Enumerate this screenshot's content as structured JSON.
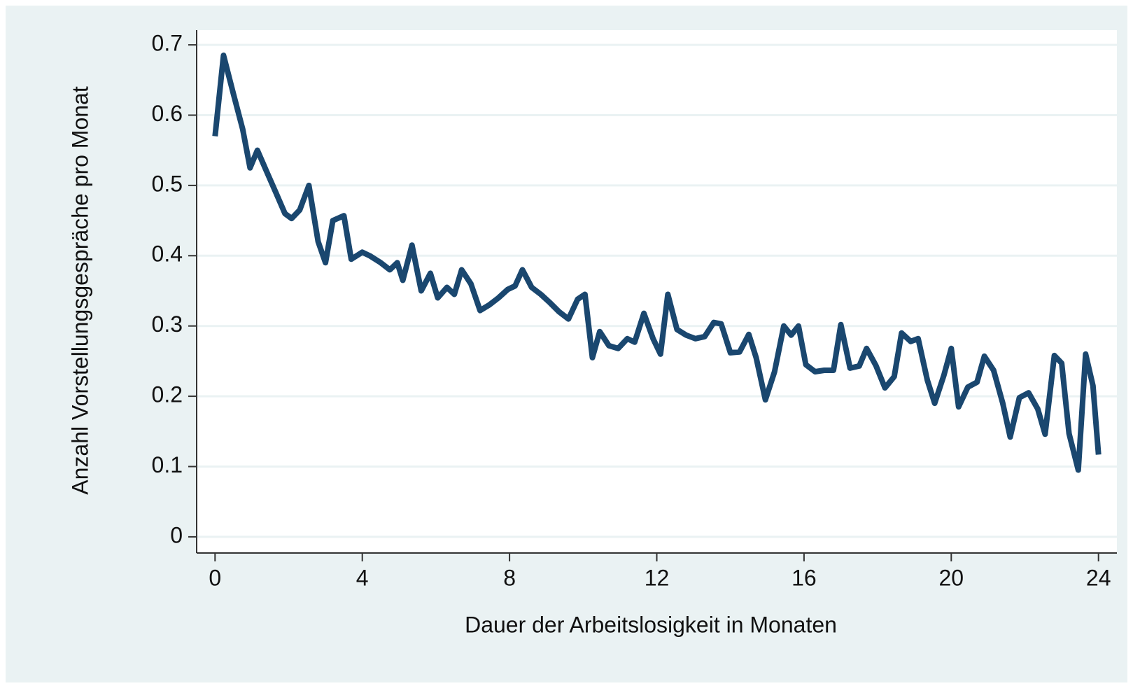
{
  "chart_data": {
    "type": "line",
    "xlabel": "Dauer der Arbeitslosigkeit in Monaten",
    "ylabel": "Anzahl Vorstellungsgespräche pro Monat",
    "x": [
      0,
      0.23,
      0.5,
      0.75,
      0.95,
      1.15,
      1.4,
      1.65,
      1.9,
      2.08,
      2.3,
      2.55,
      2.8,
      3.0,
      3.2,
      3.5,
      3.7,
      4.0,
      4.2,
      4.5,
      4.75,
      4.95,
      5.1,
      5.35,
      5.6,
      5.85,
      6.05,
      6.3,
      6.5,
      6.7,
      6.95,
      7.2,
      7.45,
      7.7,
      7.95,
      8.15,
      8.35,
      8.6,
      8.85,
      9.1,
      9.35,
      9.6,
      9.85,
      10.05,
      10.25,
      10.45,
      10.7,
      10.95,
      11.2,
      11.4,
      11.65,
      11.9,
      12.1,
      12.3,
      12.55,
      12.8,
      13.05,
      13.3,
      13.55,
      13.75,
      14.0,
      14.25,
      14.5,
      14.7,
      14.95,
      15.2,
      15.45,
      15.65,
      15.85,
      16.05,
      16.3,
      16.55,
      16.8,
      17.0,
      17.25,
      17.5,
      17.7,
      17.95,
      18.2,
      18.45,
      18.65,
      18.9,
      19.1,
      19.35,
      19.55,
      19.8,
      20.0,
      20.2,
      20.45,
      20.7,
      20.9,
      21.15,
      21.4,
      21.6,
      21.85,
      22.1,
      22.35,
      22.55,
      22.8,
      23.0,
      23.2,
      23.45,
      23.65,
      23.85,
      24.0
    ],
    "series": [
      {
        "name": "Anzahl Vorstellungsgespräche pro Monat",
        "color": "#1a476f",
        "values": [
          0.57,
          0.685,
          0.63,
          0.58,
          0.525,
          0.55,
          0.52,
          0.49,
          0.46,
          0.453,
          0.465,
          0.5,
          0.42,
          0.39,
          0.45,
          0.457,
          0.395,
          0.405,
          0.4,
          0.39,
          0.38,
          0.39,
          0.365,
          0.415,
          0.35,
          0.375,
          0.34,
          0.355,
          0.345,
          0.38,
          0.36,
          0.322,
          0.33,
          0.34,
          0.352,
          0.357,
          0.38,
          0.355,
          0.345,
          0.333,
          0.32,
          0.31,
          0.338,
          0.345,
          0.255,
          0.292,
          0.272,
          0.268,
          0.282,
          0.277,
          0.318,
          0.282,
          0.26,
          0.345,
          0.295,
          0.287,
          0.282,
          0.285,
          0.305,
          0.303,
          0.262,
          0.263,
          0.288,
          0.255,
          0.195,
          0.235,
          0.3,
          0.287,
          0.3,
          0.245,
          0.235,
          0.237,
          0.237,
          0.302,
          0.24,
          0.243,
          0.268,
          0.244,
          0.212,
          0.228,
          0.29,
          0.278,
          0.282,
          0.223,
          0.19,
          0.23,
          0.268,
          0.185,
          0.213,
          0.22,
          0.257,
          0.237,
          0.19,
          0.142,
          0.198,
          0.205,
          0.182,
          0.146,
          0.258,
          0.247,
          0.147,
          0.095,
          0.26,
          0.215,
          0.117
        ]
      }
    ],
    "xlim": [
      -0.5,
      24.5
    ],
    "xticks": [
      0,
      4,
      8,
      12,
      16,
      20,
      24
    ],
    "ylim": [
      -0.023,
      0.721
    ],
    "yticks": [
      0,
      0.1,
      0.2,
      0.3,
      0.4,
      0.5,
      0.6,
      0.7
    ],
    "grid": true
  }
}
